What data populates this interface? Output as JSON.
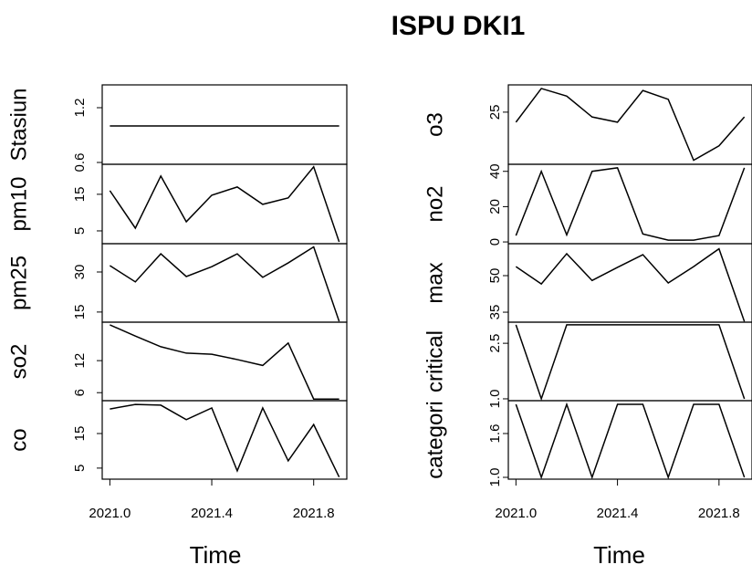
{
  "chart_data": {
    "type": "line",
    "title": "ISPU DKI1",
    "xlabel": "Time",
    "x": [
      2021.0,
      2021.1,
      2021.2,
      2021.3,
      2021.4,
      2021.5,
      2021.6,
      2021.7,
      2021.8,
      2021.9
    ],
    "xlim": [
      2020.97,
      2021.93
    ],
    "xticks": [
      {
        "value": 2021.0,
        "label": "2021.0"
      },
      {
        "value": 2021.4,
        "label": "2021.4"
      },
      {
        "value": 2021.8,
        "label": "2021.8"
      }
    ],
    "color": "#000000",
    "panels": [
      {
        "label": "Stasiun",
        "values": [
          1,
          1,
          1,
          1,
          1,
          1,
          1,
          1,
          1,
          1
        ],
        "ylim": [
          0.58,
          1.45
        ],
        "yticks": [
          0.6,
          1.2
        ]
      },
      {
        "label": "pm10",
        "values": [
          16,
          5.75,
          20,
          7.5,
          14.75,
          17,
          12.25,
          14,
          22.5,
          2
        ],
        "ylim": [
          1.5,
          23.2
        ],
        "yticks": [
          5,
          15
        ]
      },
      {
        "label": "pm25",
        "values": [
          32.4,
          26.3,
          36.8,
          28.3,
          32,
          36.8,
          28,
          33.4,
          39.4,
          11.5
        ],
        "ylim": [
          11.2,
          40.6
        ],
        "yticks": [
          15,
          30
        ]
      },
      {
        "label": "so2",
        "values": [
          18.7,
          16.6,
          14.6,
          13.4,
          13.2,
          12.2,
          11.1,
          15.3,
          4.8,
          4.8
        ],
        "ylim": [
          4.5,
          19.2
        ],
        "yticks": [
          6,
          12
        ]
      },
      {
        "label": "co",
        "values": [
          22.1,
          23.4,
          23.2,
          19,
          22.4,
          4.2,
          22.4,
          7.1,
          17.6,
          2.4
        ],
        "ylim": [
          1.8,
          24.5
        ],
        "yticks": [
          5,
          15
        ]
      },
      {
        "label": "o3",
        "values": [
          23.75,
          27.95,
          27,
          24.4,
          23.75,
          27.7,
          26.6,
          19,
          20.8,
          24.4
        ],
        "ylim": [
          18.5,
          28.4
        ],
        "yticks": [
          25
        ]
      },
      {
        "label": "no2",
        "values": [
          3.6,
          40,
          4,
          40,
          42,
          4.5,
          1,
          1,
          3.6,
          42
        ],
        "ylim": [
          -1,
          44
        ],
        "yticks": [
          0,
          20,
          40
        ]
      },
      {
        "label": "max",
        "values": [
          53.7,
          46.6,
          59,
          48,
          53.4,
          58.6,
          47,
          53.7,
          61,
          31.2
        ],
        "ylim": [
          30.9,
          63.1
        ],
        "yticks": [
          35,
          50
        ]
      },
      {
        "label": "critical",
        "values": [
          3,
          1,
          3,
          3,
          3,
          3,
          3,
          3,
          3,
          1
        ],
        "ylim": [
          0.95,
          3.07
        ],
        "yticks": [
          {
            "value": 1,
            "label": "1.0"
          },
          2.5
        ]
      },
      {
        "label": "categori",
        "values": [
          2,
          1,
          2,
          1,
          2,
          2,
          1,
          2,
          2,
          1
        ],
        "ylim": [
          0.975,
          2.05
        ],
        "yticks": [
          {
            "value": 1,
            "label": "1.0"
          },
          1.6
        ]
      }
    ]
  }
}
